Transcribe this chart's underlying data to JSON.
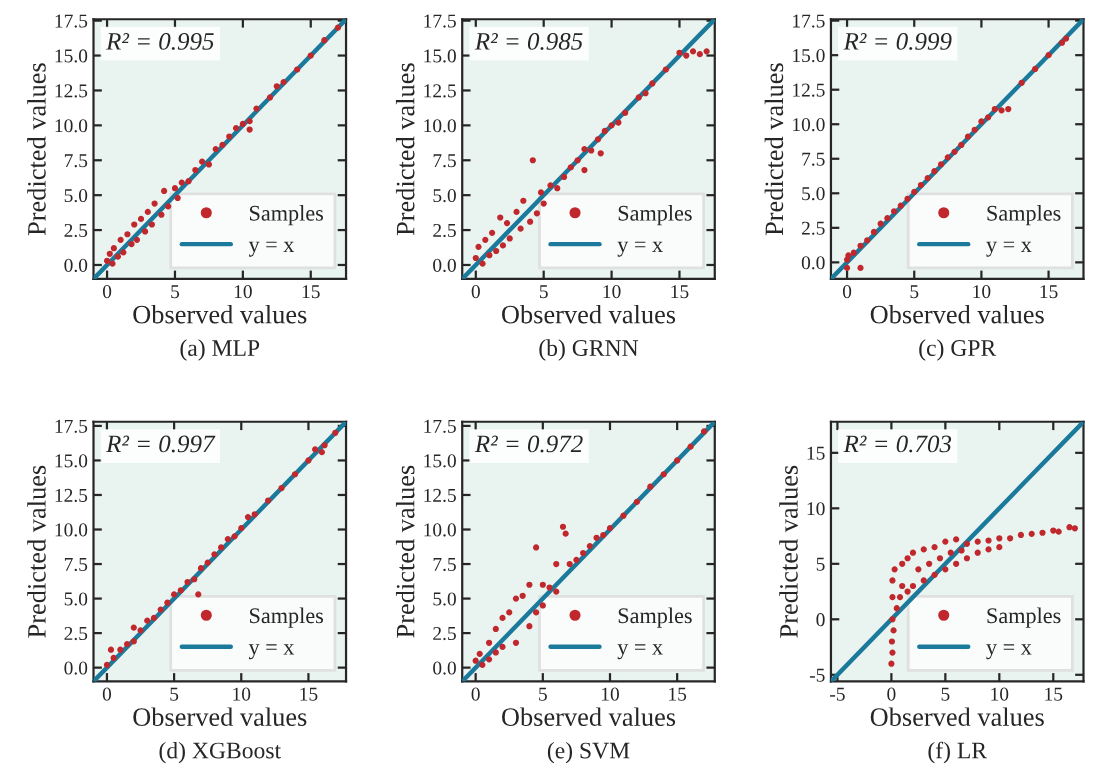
{
  "chart_data": [
    {
      "type": "scatter",
      "title": "(a) MLP",
      "xlabel": "Observed values",
      "ylabel": "Predicted values",
      "annotations": [
        "R² = 0.995"
      ],
      "xlim": [
        -1,
        17.6
      ],
      "ylim": [
        -1,
        17.6
      ],
      "xticks": [
        0,
        5,
        10,
        15
      ],
      "yticks": [
        {
          "value": 0,
          "label": "0.0"
        },
        {
          "value": 2.5,
          "label": "2.5"
        },
        {
          "value": 5,
          "label": "5.0"
        },
        {
          "value": 7.5,
          "label": "7.5"
        },
        {
          "value": 10,
          "label": "10.0"
        },
        {
          "value": 12.5,
          "label": "12.5"
        },
        {
          "value": 15,
          "label": "15.0"
        },
        {
          "value": 17.5,
          "label": "17.5"
        }
      ],
      "grid": false,
      "legend": "bottom right",
      "series": [
        {
          "name": "Samples",
          "marker": "circle",
          "color": "#c0282d",
          "x": [
            0,
            0.2,
            0.4,
            0.5,
            0.8,
            1,
            1.2,
            1.5,
            1.8,
            2,
            2.2,
            2.5,
            2.8,
            3,
            3.3,
            3.5,
            4,
            4.2,
            4.5,
            5,
            5.2,
            5.5,
            6,
            6.5,
            7,
            7.5,
            8,
            8.5,
            9,
            9.5,
            10,
            10.5,
            10.5,
            11,
            12,
            12.5,
            13,
            14,
            15,
            16,
            17
          ],
          "values": [
            0.3,
            0.8,
            0.1,
            1.2,
            0.6,
            1.8,
            0.9,
            2.2,
            1.5,
            2.9,
            1.8,
            3.3,
            2.4,
            3.8,
            2.9,
            4.4,
            3.6,
            5.3,
            4.2,
            5.5,
            4.8,
            5.9,
            6.0,
            6.8,
            7.4,
            7.2,
            8.3,
            8.6,
            9.2,
            9.8,
            10.1,
            10.3,
            9.7,
            11.2,
            12.0,
            12.8,
            13.1,
            14.0,
            15.0,
            16.1,
            17.0
          ]
        },
        {
          "name": "y = x",
          "type": "line",
          "color": "#1b7a9c",
          "x": [
            -1,
            17.6
          ],
          "values": [
            -1,
            17.6
          ]
        }
      ]
    },
    {
      "type": "scatter",
      "title": "(b) GRNN",
      "xlabel": "Observed values",
      "ylabel": "Predicted values",
      "annotations": [
        "R² = 0.985"
      ],
      "xlim": [
        -1,
        17.6
      ],
      "ylim": [
        -1,
        17.6
      ],
      "xticks": [
        0,
        5,
        10,
        15
      ],
      "yticks": [
        {
          "value": 0,
          "label": "0.0"
        },
        {
          "value": 2.5,
          "label": "2.5"
        },
        {
          "value": 5,
          "label": "5.0"
        },
        {
          "value": 7.5,
          "label": "7.5"
        },
        {
          "value": 10,
          "label": "10.0"
        },
        {
          "value": 12.5,
          "label": "12.5"
        },
        {
          "value": 15,
          "label": "15.0"
        },
        {
          "value": 17.5,
          "label": "17.5"
        }
      ],
      "grid": false,
      "legend": "bottom right",
      "series": [
        {
          "name": "Samples",
          "marker": "circle",
          "color": "#c0282d",
          "x": [
            0,
            0.2,
            0.5,
            0.7,
            1,
            1.2,
            1.5,
            1.8,
            2,
            2.3,
            2.5,
            3,
            3.3,
            3.5,
            4,
            4.2,
            4.5,
            4.8,
            5,
            5.5,
            6,
            6.5,
            7,
            7.5,
            8,
            8,
            8.5,
            9,
            9.2,
            9.5,
            10,
            10.5,
            11,
            12,
            12.5,
            13,
            14,
            15,
            15.5,
            16,
            16.5,
            17
          ],
          "values": [
            0.5,
            1.3,
            0.1,
            1.8,
            0.7,
            2.3,
            1.0,
            3.4,
            1.4,
            3.0,
            1.9,
            3.8,
            2.6,
            4.6,
            3.1,
            7.5,
            3.7,
            5.2,
            4.4,
            5.7,
            5.5,
            6.3,
            7.0,
            7.5,
            8.3,
            6.8,
            8.2,
            9.0,
            8.0,
            9.6,
            10.0,
            10.2,
            10.9,
            12.0,
            12.3,
            13.0,
            14.0,
            15.2,
            15.0,
            15.3,
            15.1,
            15.3
          ]
        },
        {
          "name": "y = x",
          "type": "line",
          "color": "#1b7a9c",
          "x": [
            -1,
            17.6
          ],
          "values": [
            -1,
            17.6
          ]
        }
      ]
    },
    {
      "type": "scatter",
      "title": "(c) GPR",
      "xlabel": "Observed values",
      "ylabel": "Predicted values",
      "annotations": [
        "R² = 0.999"
      ],
      "xlim": [
        -1.2,
        17.6
      ],
      "ylim": [
        -1.2,
        17.6
      ],
      "xticks": [
        0,
        5,
        10,
        15
      ],
      "yticks": [
        {
          "value": 0,
          "label": "0.0"
        },
        {
          "value": 2.5,
          "label": "2.5"
        },
        {
          "value": 5,
          "label": "5.0"
        },
        {
          "value": 7.5,
          "label": "7.5"
        },
        {
          "value": 10,
          "label": "10.0"
        },
        {
          "value": 12.5,
          "label": "12.5"
        },
        {
          "value": 15,
          "label": "15.0"
        },
        {
          "value": 17.5,
          "label": "17.5"
        }
      ],
      "grid": false,
      "legend": "bottom right",
      "series": [
        {
          "name": "Samples",
          "marker": "circle",
          "color": "#c0282d",
          "x": [
            0,
            0,
            0.1,
            0.5,
            1,
            1,
            1.5,
            2,
            2.5,
            3,
            3.5,
            4,
            4.5,
            5,
            5.5,
            6,
            6.5,
            7,
            7.5,
            8,
            8.5,
            9,
            9.5,
            10,
            10.5,
            11,
            11.5,
            12,
            13,
            14,
            15,
            16,
            16.3
          ],
          "values": [
            0.2,
            -0.4,
            0.5,
            0.7,
            1.2,
            -0.4,
            1.6,
            2.2,
            2.8,
            3.2,
            3.7,
            4.1,
            4.6,
            5.1,
            5.6,
            6.1,
            6.6,
            7.1,
            7.6,
            8.0,
            8.5,
            9.1,
            9.6,
            10.2,
            10.5,
            11.1,
            11.0,
            11.1,
            13.0,
            14.0,
            15.0,
            15.9,
            16.2
          ]
        },
        {
          "name": "y = x",
          "type": "line",
          "color": "#1b7a9c",
          "x": [
            -1.2,
            17.6
          ],
          "values": [
            -1.2,
            17.6
          ]
        }
      ]
    },
    {
      "type": "scatter",
      "title": "(d) XGBoost",
      "xlabel": "Observed values",
      "ylabel": "Predicted values",
      "annotations": [
        "R² = 0.997"
      ],
      "xlim": [
        -1,
        17.8
      ],
      "ylim": [
        -1,
        17.8
      ],
      "xticks": [
        0,
        5,
        10,
        15
      ],
      "yticks": [
        {
          "value": 0,
          "label": "0.0"
        },
        {
          "value": 2.5,
          "label": "2.5"
        },
        {
          "value": 5,
          "label": "5.0"
        },
        {
          "value": 7.5,
          "label": "7.5"
        },
        {
          "value": 10,
          "label": "10.0"
        },
        {
          "value": 12.5,
          "label": "12.5"
        },
        {
          "value": 15,
          "label": "15.0"
        },
        {
          "value": 17.5,
          "label": "17.5"
        }
      ],
      "grid": false,
      "legend": "bottom right",
      "series": [
        {
          "name": "Samples",
          "marker": "circle",
          "color": "#c0282d",
          "x": [
            0,
            0.3,
            0.5,
            1,
            1.5,
            2,
            2,
            2.5,
            3,
            3.5,
            4,
            4.5,
            5,
            5.5,
            6,
            6.5,
            6.8,
            7,
            7.5,
            8,
            8.5,
            9,
            9.5,
            10,
            10.5,
            11,
            12,
            13,
            14,
            15,
            15.5,
            16,
            16.2,
            17
          ],
          "values": [
            0.2,
            1.3,
            0.7,
            1.3,
            1.7,
            2.9,
            1.9,
            2.7,
            3.4,
            3.6,
            4.2,
            4.7,
            5.3,
            5.6,
            6.2,
            6.4,
            5.3,
            7.2,
            7.6,
            8.2,
            8.7,
            9.3,
            9.5,
            10.1,
            10.9,
            11.1,
            12.1,
            13.0,
            14.0,
            15.0,
            15.8,
            15.6,
            16.1,
            17.0
          ]
        },
        {
          "name": "y = x",
          "type": "line",
          "color": "#1b7a9c",
          "x": [
            -1,
            17.8
          ],
          "values": [
            -1,
            17.8
          ]
        }
      ]
    },
    {
      "type": "scatter",
      "title": "(e) SVM",
      "xlabel": "Observed values",
      "ylabel": "Predicted values",
      "annotations": [
        "R² = 0.972"
      ],
      "xlim": [
        -1,
        17.8
      ],
      "ylim": [
        -1,
        17.8
      ],
      "xticks": [
        0,
        5,
        10,
        15
      ],
      "yticks": [
        {
          "value": 0,
          "label": "0.0"
        },
        {
          "value": 2.5,
          "label": "2.5"
        },
        {
          "value": 5,
          "label": "5.0"
        },
        {
          "value": 7.5,
          "label": "7.5"
        },
        {
          "value": 10,
          "label": "10.0"
        },
        {
          "value": 12.5,
          "label": "12.5"
        },
        {
          "value": 15,
          "label": "15.0"
        },
        {
          "value": 17.5,
          "label": "17.5"
        }
      ],
      "grid": false,
      "legend": "bottom right",
      "series": [
        {
          "name": "Samples",
          "marker": "circle",
          "color": "#c0282d",
          "x": [
            0,
            0.3,
            0.5,
            1,
            1,
            1.5,
            1.5,
            2,
            2,
            2.5,
            3,
            3,
            3.5,
            4,
            4,
            4.5,
            4.5,
            5,
            5,
            5.5,
            6,
            6,
            6.5,
            6.7,
            7,
            7.5,
            8,
            8.5,
            9,
            9.5,
            10,
            11,
            12,
            13,
            14,
            15,
            16,
            17
          ],
          "values": [
            0.5,
            1.0,
            0.2,
            1.8,
            0.6,
            2.8,
            1.1,
            3.6,
            1.5,
            4.0,
            5.0,
            1.8,
            5.2,
            6.0,
            3.0,
            8.7,
            4.0,
            6.0,
            4.5,
            5.8,
            7.5,
            5.5,
            10.2,
            9.7,
            7.5,
            7.8,
            8.3,
            8.8,
            9.4,
            9.6,
            10.1,
            11.0,
            12.0,
            13.1,
            14.0,
            15.0,
            16.0,
            17.1
          ]
        },
        {
          "name": "y = x",
          "type": "line",
          "color": "#1b7a9c",
          "x": [
            -1,
            17.8
          ],
          "values": [
            -1,
            17.8
          ]
        }
      ]
    },
    {
      "type": "scatter",
      "title": "(f) LR",
      "xlabel": "Observed values",
      "ylabel": "Predicted values",
      "annotations": [
        "R² = 0.703"
      ],
      "xlim": [
        -5.6,
        17.8
      ],
      "ylim": [
        -5.6,
        17.8
      ],
      "xticks": [
        -5,
        0,
        5,
        10,
        15
      ],
      "yticks": [
        -5,
        0,
        5,
        10,
        15
      ],
      "grid": false,
      "legend": "bottom right",
      "series": [
        {
          "name": "Samples",
          "marker": "circle",
          "color": "#c0282d",
          "x": [
            0,
            0.1,
            0.05,
            0.2,
            0.1,
            0.1,
            0.1,
            0.3,
            0.5,
            0.8,
            1,
            1,
            1.5,
            1.5,
            2,
            2,
            2.5,
            3,
            3,
            3.5,
            4,
            4,
            4.5,
            5,
            5,
            5.5,
            6,
            6,
            6.5,
            7,
            7,
            8,
            8,
            9,
            9,
            10,
            10,
            11,
            12,
            13,
            14,
            15,
            15.5,
            16.5,
            17
          ],
          "values": [
            -4,
            -3,
            -2,
            -1,
            0,
            2,
            3.5,
            4.5,
            1,
            2,
            5,
            3,
            5.5,
            2.5,
            6,
            3,
            4.5,
            6.3,
            3.5,
            5,
            6.5,
            4,
            5.5,
            7,
            4.5,
            6,
            7.2,
            5,
            6.2,
            6.8,
            5.5,
            7,
            6,
            7.1,
            6.3,
            7.3,
            6.5,
            7.3,
            7.6,
            7.7,
            7.8,
            8.0,
            7.9,
            8.3,
            8.2
          ]
        },
        {
          "name": "y = x",
          "type": "line",
          "color": "#1b7a9c",
          "x": [
            -5.6,
            17.8
          ],
          "values": [
            -5.6,
            17.8
          ]
        }
      ]
    }
  ]
}
